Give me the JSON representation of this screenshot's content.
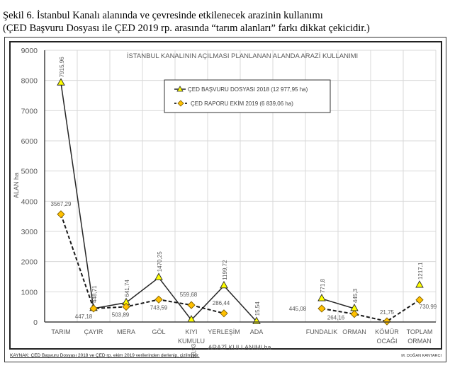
{
  "caption": {
    "line1": "Şekil 6. İstanbul Kanalı alanında ve çevresinde etkilenecek arazinin kullanımı",
    "line2": "(ÇED Başvuru Dosyası ile ÇED 2019 rp. arasında “tarım alanları” farkı dikkat  çekicidir.)"
  },
  "footer": {
    "source": "KAYNAK: ÇED Başvuru Dosyası 2018 ve ÇED rp. ekim 2019 verilerinden derlenip, çizilmiştir.",
    "author": "M. DOĞAN KANTARCI"
  },
  "chart_data": {
    "type": "line",
    "title": "İSTANBUL KANALININ AÇILMASI PLANLANAN ALANDA ARAZİ KULLANIMI",
    "xlabel": "ARAZİ KULLANIMI  ha",
    "ylabel": "ALAN ha",
    "ylim": [
      0,
      9000
    ],
    "yticks": [
      0,
      1000,
      2000,
      3000,
      4000,
      5000,
      6000,
      7000,
      8000,
      9000
    ],
    "grid": true,
    "legend_position": "top-center",
    "categories": [
      "TARIM",
      "ÇAYIR",
      "MERA",
      "GÖL",
      "KIYI KUMULU",
      "YERLEŞİM",
      "ADA",
      "",
      "FUNDALIK",
      "ORMAN",
      "KÖMÜR OCAĞI",
      "TOPLAM ORMAN"
    ],
    "category_lines": [
      [
        "TARIM"
      ],
      [
        "ÇAYIR"
      ],
      [
        "MERA"
      ],
      [
        "GÖL"
      ],
      [
        "KIYI",
        "KUMULU"
      ],
      [
        "YERLEŞİM"
      ],
      [
        "ADA"
      ],
      [
        ""
      ],
      [
        "FUNDALIK"
      ],
      [
        "ORMAN"
      ],
      [
        "KÖMÜR",
        "OCAĞI"
      ],
      [
        "TOPLAM",
        "ORMAN"
      ]
    ],
    "series": [
      {
        "name": "ÇED BAŞVURU DOSYASI 2018 (12 977,95 ha)",
        "style": "solid",
        "marker": "triangle",
        "color": "#262626",
        "marker_color": "#ffff00",
        "values": [
          7915.96,
          448.71,
          641.74,
          1470.25,
          68.93,
          1199.72,
          15.54,
          null,
          771.8,
          445.3,
          null,
          1217.1
        ],
        "labels": [
          "7915,96",
          "448,71",
          "641,74",
          "1470,25",
          "68,93",
          "1199,72",
          "15,54",
          "",
          "771,8",
          "445,3",
          "",
          "1217,1"
        ],
        "segments": [
          [
            0,
            6
          ],
          [
            8,
            9
          ],
          [
            11,
            11
          ]
        ]
      },
      {
        "name": "ÇED RAPORU EKİM 2019 (6 839,06 ha)",
        "style": "dashed",
        "marker": "diamond",
        "color": "#1a1a1a",
        "marker_color": "#ffc000",
        "values": [
          3567.29,
          447.18,
          503.89,
          743.59,
          559.68,
          286.44,
          null,
          null,
          445.08,
          264.16,
          21.75,
          730.99
        ],
        "labels": [
          "3567,29",
          "447,18",
          "503,89",
          "743,59",
          "559,68",
          "286,44",
          "",
          "",
          "445,08",
          "264,16",
          "21,75",
          "730,99"
        ],
        "segments": [
          [
            0,
            5
          ],
          [
            8,
            11
          ]
        ]
      }
    ]
  }
}
